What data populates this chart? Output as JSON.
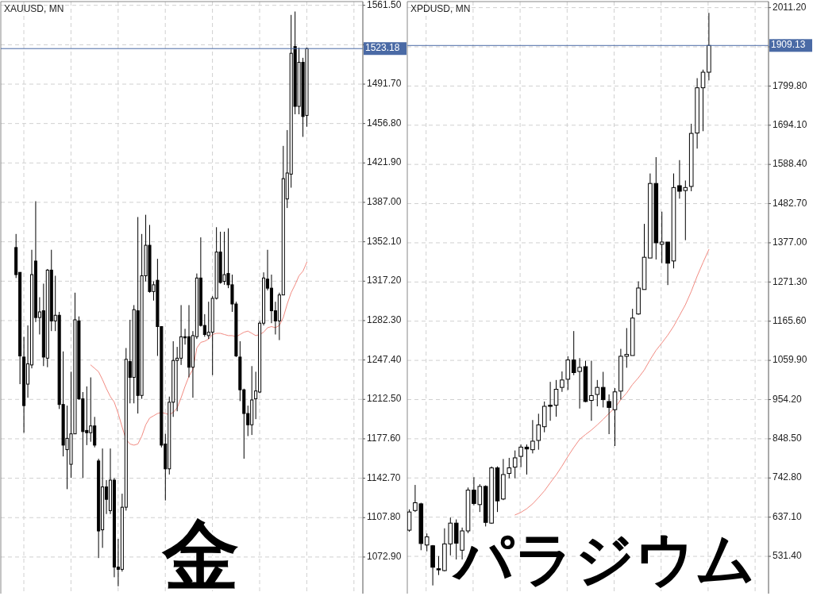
{
  "chart_data": [
    {
      "type": "candlestick",
      "title": "XAUUSD, MN",
      "categories": [
        null,
        null,
        null,
        null,
        null,
        null,
        null,
        null,
        null,
        null,
        null,
        null,
        null,
        null,
        null,
        null,
        null,
        null,
        null,
        null,
        null,
        null,
        null,
        null,
        null,
        null,
        null,
        null,
        null,
        null,
        null,
        null,
        null,
        null,
        null,
        null,
        null,
        null,
        null,
        null,
        null,
        null,
        null,
        null,
        null,
        null,
        null,
        null,
        null,
        null,
        null,
        null,
        null,
        null,
        null,
        null,
        null,
        null,
        null,
        null,
        null,
        null,
        null,
        null,
        null,
        null,
        null,
        null,
        null,
        null,
        null,
        null,
        null,
        null,
        null
      ],
      "ohlc": [
        [
          1347,
          1359,
          1320,
          1323
        ],
        [
          1325,
          1325,
          1226,
          1251
        ],
        [
          1250,
          1268,
          1183,
          1207
        ],
        [
          1226,
          1278,
          1214,
          1244
        ],
        [
          1243,
          1345,
          1240,
          1323
        ],
        [
          1335,
          1388,
          1281,
          1285
        ],
        [
          1285,
          1303,
          1270,
          1290
        ],
        [
          1291,
          1315,
          1242,
          1250
        ],
        [
          1249,
          1328,
          1241,
          1327
        ],
        [
          1327,
          1345,
          1273,
          1282
        ],
        [
          1282,
          1322,
          1273,
          1287
        ],
        [
          1287,
          1290,
          1204,
          1208
        ],
        [
          1208,
          1255,
          1162,
          1172
        ],
        [
          1168,
          1207,
          1133,
          1178
        ],
        [
          1155,
          1237,
          1143,
          1182
        ],
        [
          1182,
          1307,
          1182,
          1283
        ],
        [
          1282,
          1286,
          1212,
          1213
        ],
        [
          1213,
          1219,
          1143,
          1184
        ],
        [
          1185,
          1224,
          1172,
          1183
        ],
        [
          1183,
          1232,
          1175,
          1189
        ],
        [
          1189,
          1197,
          1170,
          1172
        ],
        [
          1158,
          1160,
          1072,
          1096
        ],
        [
          1097,
          1169,
          1081,
          1135
        ],
        [
          1135,
          1141,
          1111,
          1124
        ],
        [
          1114,
          1169,
          1111,
          1141
        ],
        [
          1141,
          1143,
          1055,
          1064
        ],
        [
          1064,
          1089,
          1047,
          1062
        ],
        [
          1062,
          1129,
          1060,
          1117
        ],
        [
          1117,
          1258,
          1114,
          1248
        ],
        [
          1246,
          1283,
          1209,
          1232
        ],
        [
          1232,
          1296,
          1209,
          1292
        ],
        [
          1291,
          1374,
          1200,
          1216
        ],
        [
          1216,
          1359,
          1213,
          1322
        ],
        [
          1322,
          1376,
          1317,
          1349
        ],
        [
          1349,
          1367,
          1307,
          1308
        ],
        [
          1308,
          1317,
          1300,
          1314
        ],
        [
          1318,
          1337,
          1251,
          1277
        ],
        [
          1277,
          1277,
          1170,
          1172
        ],
        [
          1173,
          1182,
          1123,
          1151
        ],
        [
          1151,
          1215,
          1146,
          1210
        ],
        [
          1210,
          1264,
          1197,
          1247
        ],
        [
          1247,
          1259,
          1202,
          1249
        ],
        [
          1249,
          1296,
          1243,
          1268
        ],
        [
          1268,
          1275,
          1261,
          1267
        ],
        [
          1268,
          1296,
          1232,
          1241
        ],
        [
          1241,
          1273,
          1214,
          1269
        ],
        [
          1268,
          1324,
          1266,
          1320
        ],
        [
          1320,
          1356,
          1277,
          1278
        ],
        [
          1278,
          1288,
          1268,
          1270
        ],
        [
          1269,
          1299,
          1266,
          1272
        ],
        [
          1272,
          1304,
          1234,
          1302
        ],
        [
          1302,
          1365,
          1301,
          1343
        ],
        [
          1343,
          1361,
          1315,
          1316
        ],
        [
          1317,
          1361,
          1314,
          1323
        ],
        [
          1324,
          1364,
          1311,
          1314
        ],
        [
          1314,
          1323,
          1290,
          1297
        ],
        [
          1297,
          1299,
          1250,
          1251
        ],
        [
          1250,
          1264,
          1211,
          1221
        ],
        [
          1221,
          1222,
          1160,
          1200
        ],
        [
          1200,
          1207,
          1180,
          1190
        ],
        [
          1190,
          1242,
          1181,
          1212
        ],
        [
          1213,
          1237,
          1195,
          1220
        ],
        [
          1219,
          1282,
          1218,
          1280
        ],
        [
          1280,
          1325,
          1278,
          1320
        ],
        [
          1319,
          1345,
          1309,
          1311
        ],
        [
          1311,
          1323,
          1280,
          1291
        ],
        [
          1291,
          1299,
          1270,
          1282
        ],
        [
          1282,
          1307,
          1265,
          1305
        ],
        [
          1305,
          1437,
          1305,
          1408
        ],
        [
          1390,
          1451,
          1382,
          1413
        ],
        [
          1412,
          1553,
          1400,
          1519
        ],
        [
          1525,
          1556,
          1465,
          1472
        ],
        [
          1472,
          1524,
          1465,
          1511
        ],
        [
          1511,
          1515,
          1445,
          1463
        ],
        [
          1464,
          1524,
          1454,
          1523.18
        ]
      ],
      "series": [
        {
          "type": "line",
          "color": "#f28b82",
          "values": [
            null,
            null,
            null,
            null,
            null,
            null,
            null,
            null,
            null,
            null,
            null,
            null,
            null,
            null,
            null,
            null,
            null,
            null,
            null,
            1243,
            1240,
            1237,
            1230,
            1222,
            1215,
            1210,
            1200,
            1188,
            1177,
            1173,
            1172,
            1173,
            1180,
            1190,
            1196,
            1198,
            1200,
            1201,
            1200,
            1199,
            1201,
            1205,
            1214,
            1224,
            1233,
            1239,
            1258,
            1263,
            1264,
            1266,
            1270,
            1271,
            1271,
            1270,
            1269,
            1269,
            1268,
            1270,
            1272,
            1273,
            1271,
            1269,
            1270,
            1272,
            1276,
            1277,
            1276,
            1278,
            1285,
            1297,
            1307,
            1314,
            1322,
            1326,
            1334
          ]
        }
      ],
      "ylim": [
        1040.5,
        1564.8
      ],
      "yticks": [
        {
          "value": 1072.9,
          "label": "1072.90"
        },
        {
          "value": 1107.8,
          "label": "1107.80"
        },
        {
          "value": 1142.7,
          "label": "1142.70"
        },
        {
          "value": 1177.6,
          "label": "1177.60"
        },
        {
          "value": 1212.5,
          "label": "1212.50"
        },
        {
          "value": 1247.4,
          "label": "1247.40"
        },
        {
          "value": 1282.3,
          "label": "1282.30"
        },
        {
          "value": 1317.2,
          "label": "1317.20"
        },
        {
          "value": 1352.1,
          "label": "1352.10"
        },
        {
          "value": 1387.0,
          "label": "1387.00"
        },
        {
          "value": 1421.9,
          "label": "1421.90"
        },
        {
          "value": 1456.8,
          "label": "1456.80"
        },
        {
          "value": 1491.7,
          "label": "1491.70"
        },
        {
          "value": 1526.6,
          "label": null
        },
        {
          "value": 1561.5,
          "label": "1561.50"
        }
      ],
      "grid": true,
      "ref_lines": [
        {
          "axis": "y",
          "value": 1523.18,
          "label": "1523.18",
          "color": "#4a6aa5"
        }
      ],
      "annotations": [
        "金"
      ]
    },
    {
      "type": "candlestick",
      "title": "XPDUSD, MN",
      "categories": [
        null,
        null,
        null,
        null,
        null,
        null,
        null,
        null,
        null,
        null,
        null,
        null,
        null,
        null,
        null,
        null,
        null,
        null,
        null,
        null,
        null,
        null,
        null,
        null,
        null,
        null,
        null,
        null,
        null,
        null,
        null,
        null,
        null,
        null,
        null,
        null,
        null,
        null,
        null,
        null,
        null,
        null,
        null,
        null,
        null,
        null,
        null,
        null,
        null,
        null,
        null,
        null
      ],
      "ohlc": [
        [
          602,
          658,
          598,
          651
        ],
        [
          655,
          724,
          651,
          676
        ],
        [
          673,
          676,
          548,
          566
        ],
        [
          562,
          593,
          545,
          584
        ],
        [
          560,
          562,
          453,
          502
        ],
        [
          498,
          532,
          481,
          495
        ],
        [
          493,
          607,
          491,
          565
        ],
        [
          565,
          636,
          534,
          621
        ],
        [
          621,
          631,
          523,
          567
        ],
        [
          548,
          609,
          523,
          600
        ],
        [
          600,
          717,
          594,
          710
        ],
        [
          710,
          745,
          669,
          674
        ],
        [
          671,
          726,
          651,
          720
        ],
        [
          720,
          723,
          612,
          623
        ],
        [
          621,
          774,
          619,
          770
        ],
        [
          770,
          774,
          651,
          681
        ],
        [
          686,
          794,
          683,
          752
        ],
        [
          755,
          797,
          742,
          770
        ],
        [
          772,
          817,
          742,
          797
        ],
        [
          801,
          833,
          772,
          826
        ],
        [
          826,
          833,
          752,
          821
        ],
        [
          819,
          899,
          809,
          842
        ],
        [
          844,
          916,
          819,
          886
        ],
        [
          881,
          949,
          866,
          936
        ],
        [
          939,
          1002,
          897,
          936
        ],
        [
          939,
          1007,
          908,
          982
        ],
        [
          987,
          1030,
          975,
          1007
        ],
        [
          1009,
          1071,
          980,
          1061
        ],
        [
          1061,
          1139,
          1020,
          1027
        ],
        [
          1030,
          1066,
          930,
          1041
        ],
        [
          1043,
          1059,
          947,
          949
        ],
        [
          952,
          1059,
          897,
          965
        ],
        [
          968,
          1007,
          936,
          987
        ],
        [
          987,
          1029,
          933,
          954
        ],
        [
          949,
          968,
          861,
          933
        ],
        [
          927,
          985,
          829,
          975
        ],
        [
          977,
          1091,
          954,
          1071
        ],
        [
          1071,
          1147,
          1040,
          1076
        ],
        [
          1073,
          1199,
          1073,
          1174
        ],
        [
          1185,
          1273,
          1183,
          1255
        ],
        [
          1251,
          1428,
          1251,
          1338
        ],
        [
          1336,
          1564,
          1336,
          1537
        ],
        [
          1537,
          1608,
          1332,
          1377
        ],
        [
          1373,
          1461,
          1322,
          1379
        ],
        [
          1379,
          1379,
          1263,
          1322
        ],
        [
          1328,
          1564,
          1308,
          1526
        ],
        [
          1531,
          1600,
          1496,
          1516
        ],
        [
          1518,
          1545,
          1384,
          1526
        ],
        [
          1529,
          1698,
          1516,
          1672
        ],
        [
          1673,
          1821,
          1631,
          1795
        ],
        [
          1795,
          1844,
          1678,
          1837
        ],
        [
          1837,
          1997,
          1815,
          1909.13
        ]
      ],
      "series": [
        {
          "type": "line",
          "color": "#f28b82",
          "values": [
            null,
            null,
            null,
            null,
            null,
            null,
            null,
            null,
            null,
            null,
            null,
            null,
            null,
            null,
            null,
            null,
            null,
            null,
            643,
            650,
            660,
            673,
            690,
            708,
            730,
            751,
            775,
            801,
            825,
            847,
            860,
            872,
            886,
            901,
            917,
            932,
            954,
            972,
            995,
            1013,
            1034,
            1062,
            1087,
            1107,
            1128,
            1152,
            1181,
            1210,
            1246,
            1287,
            1324,
            1359
          ]
        }
      ],
      "ylim": [
        430.9,
        2027.5
      ],
      "yticks": [
        {
          "value": 531.4,
          "label": "531.40"
        },
        {
          "value": 637.1,
          "label": "637.10"
        },
        {
          "value": 742.8,
          "label": "742.80"
        },
        {
          "value": 848.5,
          "label": "848.50"
        },
        {
          "value": 954.2,
          "label": "954.20"
        },
        {
          "value": 1059.9,
          "label": "1059.90"
        },
        {
          "value": 1165.6,
          "label": "1165.60"
        },
        {
          "value": 1271.3,
          "label": "1271.30"
        },
        {
          "value": 1377.0,
          "label": "1377.00"
        },
        {
          "value": 1482.7,
          "label": "1482.70"
        },
        {
          "value": 1588.4,
          "label": "1588.40"
        },
        {
          "value": 1694.1,
          "label": "1694.10"
        },
        {
          "value": 1799.8,
          "label": "1799.80"
        },
        {
          "value": 1905.5,
          "label": null
        },
        {
          "value": 2011.2,
          "label": "2011.20"
        }
      ],
      "grid": true,
      "ref_lines": [
        {
          "axis": "y",
          "value": 1909.13,
          "label": "1909.13",
          "color": "#4a6aa5"
        }
      ],
      "annotations": [
        "パラジウム"
      ]
    }
  ]
}
